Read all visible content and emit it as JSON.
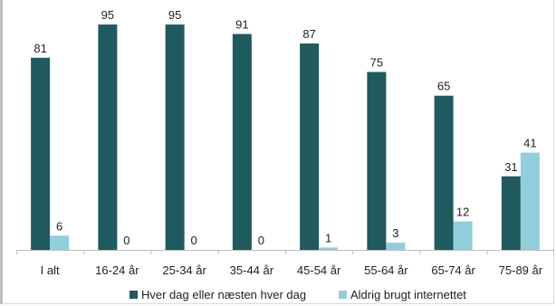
{
  "chart_data": {
    "type": "bar",
    "categories": [
      "I alt",
      "16-24 år",
      "25-34 år",
      "35-44 år",
      "45-54 år",
      "55-64 år",
      "65-74 år",
      "75-89 år"
    ],
    "series": [
      {
        "name": "Hver dag eller næsten hver dag",
        "values": [
          81,
          95,
          95,
          91,
          87,
          75,
          65,
          31
        ],
        "color": "#1f5a5e"
      },
      {
        "name": "Aldrig brugt internettet",
        "values": [
          6,
          0,
          0,
          0,
          1,
          3,
          12,
          41
        ],
        "color": "#8ecfdb"
      }
    ],
    "ylim": [
      0,
      100
    ],
    "data_labels": true,
    "grid": false,
    "legend_position": "bottom",
    "title": "",
    "xlabel": "",
    "ylabel": ""
  }
}
